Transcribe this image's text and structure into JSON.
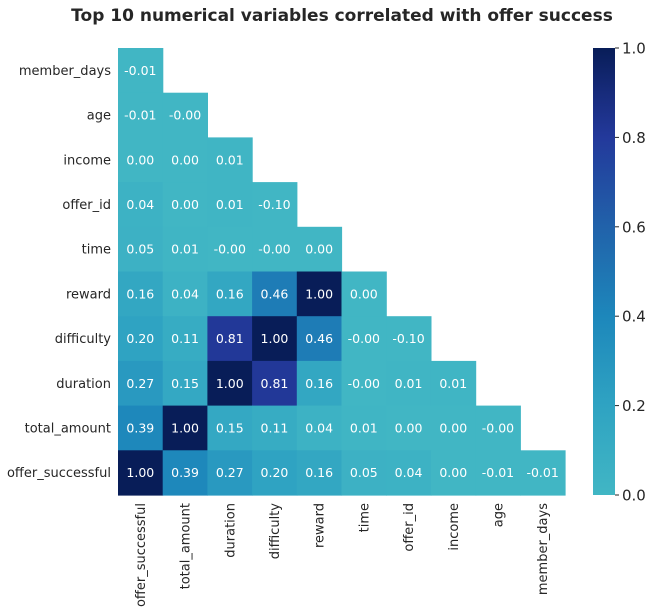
{
  "chart_data": {
    "type": "heatmap",
    "title": "Top 10 numerical variables correlated with offer success",
    "rows": [
      "member_days",
      "age",
      "income",
      "offer_id",
      "time",
      "reward",
      "difficulty",
      "duration",
      "total_amount",
      "offer_successful"
    ],
    "cols": [
      "offer_successful",
      "total_amount",
      "duration",
      "difficulty",
      "reward",
      "time",
      "offer_id",
      "income",
      "age",
      "member_days"
    ],
    "values": [
      [
        -0.01
      ],
      [
        -0.01,
        -0.0
      ],
      [
        0.0,
        0.0,
        0.01
      ],
      [
        0.04,
        0.0,
        0.01,
        -0.1
      ],
      [
        0.05,
        0.01,
        -0.0,
        -0.0,
        0.0
      ],
      [
        0.16,
        0.04,
        0.16,
        0.46,
        1.0,
        0.0
      ],
      [
        0.2,
        0.11,
        0.81,
        1.0,
        0.46,
        -0.0,
        -0.1
      ],
      [
        0.27,
        0.15,
        1.0,
        0.81,
        0.16,
        -0.0,
        0.01,
        0.01
      ],
      [
        0.39,
        1.0,
        0.15,
        0.11,
        0.04,
        0.01,
        0.0,
        0.0,
        -0.0
      ],
      [
        1.0,
        0.39,
        0.27,
        0.2,
        0.16,
        0.05,
        0.04,
        0.0,
        -0.01,
        -0.01
      ]
    ],
    "labels": [
      [
        "-0.01"
      ],
      [
        "-0.01",
        "-0.00"
      ],
      [
        "0.00",
        "0.00",
        "0.01"
      ],
      [
        "0.04",
        "0.00",
        "0.01",
        "-0.10"
      ],
      [
        "0.05",
        "0.01",
        "-0.00",
        "-0.00",
        "0.00"
      ],
      [
        "0.16",
        "0.04",
        "0.16",
        "0.46",
        "1.00",
        "0.00"
      ],
      [
        "0.20",
        "0.11",
        "0.81",
        "1.00",
        "0.46",
        "-0.00",
        "-0.10"
      ],
      [
        "0.27",
        "0.15",
        "1.00",
        "0.81",
        "0.16",
        "-0.00",
        "0.01",
        "0.01"
      ],
      [
        "0.39",
        "1.00",
        "0.15",
        "0.11",
        "0.04",
        "0.01",
        "0.00",
        "0.00",
        "-0.00"
      ],
      [
        "1.00",
        "0.39",
        "0.27",
        "0.20",
        "0.16",
        "0.05",
        "0.04",
        "0.00",
        "-0.01",
        "-0.01"
      ]
    ],
    "colorbar": {
      "range": [
        0.0,
        1.0
      ],
      "ticks": [
        "0.0",
        "0.2",
        "0.4",
        "0.6",
        "0.8",
        "1.0"
      ],
      "colormap": "YlGnBu (upper portion)",
      "color_low": "#41b6c4",
      "color_high": "#081d58"
    },
    "mask": "upper-triangle",
    "grid": false
  }
}
